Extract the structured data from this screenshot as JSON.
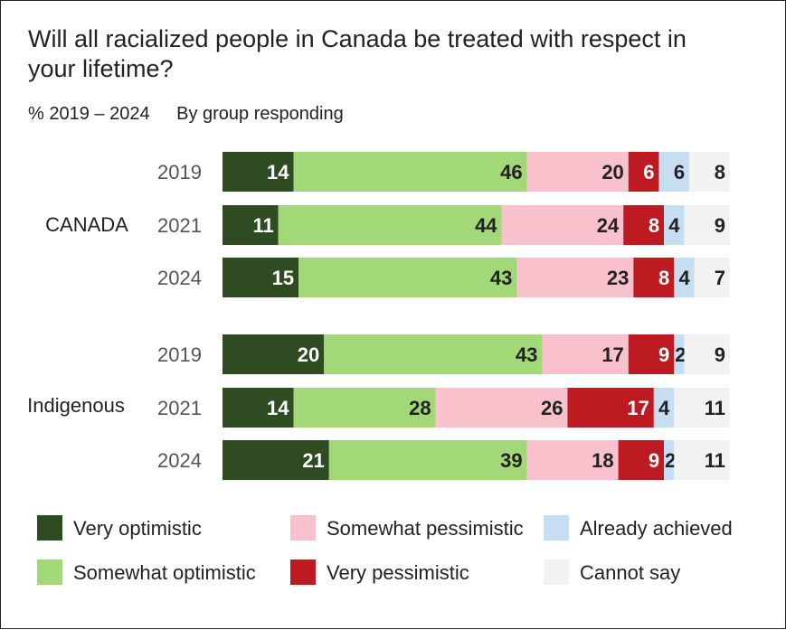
{
  "chart_data": {
    "type": "bar",
    "orientation": "horizontal",
    "stacked": true,
    "title": "Will all racialized people in Canada be treated with respect in your lifetime?",
    "subtitle": [
      "% 2019 – 2024",
      "By group responding"
    ],
    "groups": [
      {
        "name": "CANADA",
        "rows": [
          {
            "label": "2019",
            "values": [
              14,
              46,
              20,
              6,
              6,
              8
            ]
          },
          {
            "label": "2021",
            "values": [
              11,
              44,
              24,
              8,
              4,
              9
            ]
          },
          {
            "label": "2024",
            "values": [
              15,
              43,
              23,
              8,
              4,
              7
            ]
          }
        ]
      },
      {
        "name": "Indigenous",
        "rows": [
          {
            "label": "2019",
            "values": [
              20,
              43,
              17,
              9,
              2,
              9
            ]
          },
          {
            "label": "2021",
            "values": [
              14,
              28,
              26,
              17,
              4,
              11
            ]
          },
          {
            "label": "2024",
            "values": [
              21,
              39,
              18,
              9,
              2,
              11
            ]
          }
        ]
      }
    ],
    "series": [
      {
        "name": "Very optimistic",
        "color": "#2e4b22",
        "label_color": "#ffffff"
      },
      {
        "name": "Somewhat optimistic",
        "color": "#a2d877",
        "label_color": "#222222"
      },
      {
        "name": "Somewhat pessimistic",
        "color": "#f8c1cc",
        "label_color": "#222222"
      },
      {
        "name": "Very pessimistic",
        "color": "#bd1a22",
        "label_color": "#ffffff"
      },
      {
        "name": "Already achieved",
        "color": "#c6ddf2",
        "label_color": "#222222"
      },
      {
        "name": "Cannot say",
        "color": "#f2f2f2",
        "label_color": "#222222"
      }
    ],
    "xlim": [
      0,
      100
    ],
    "legend_position": "bottom",
    "grid": false
  }
}
